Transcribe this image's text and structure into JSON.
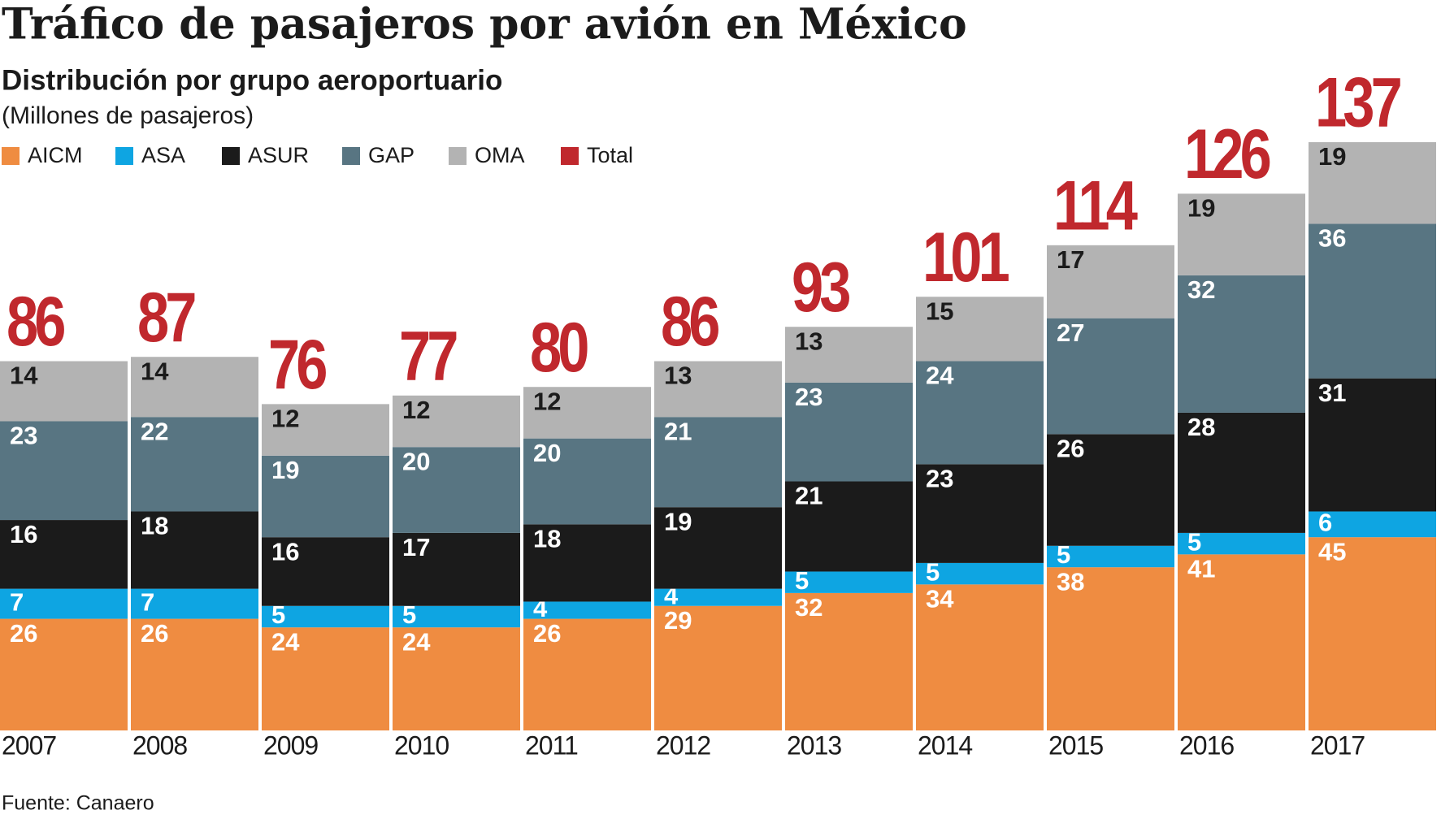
{
  "chart_data": {
    "type": "stacked-bar",
    "title": "Tráfico de pasajeros por avión en México",
    "subtitle": "Distribución por grupo aeroportuario",
    "unit": "(Millones de pasajeros)",
    "source": "Fuente: Canaero",
    "categories": [
      "2007",
      "2008",
      "2009",
      "2010",
      "2011",
      "2012",
      "2013",
      "2014",
      "2015",
      "2016",
      "2017"
    ],
    "series": [
      {
        "name": "AICM",
        "color": "#ef8c41",
        "values": [
          26,
          26,
          24,
          24,
          26,
          29,
          32,
          34,
          38,
          41,
          45
        ]
      },
      {
        "name": "ASA",
        "color": "#0ea5e2",
        "values": [
          7,
          7,
          5,
          5,
          4,
          4,
          5,
          5,
          5,
          5,
          6
        ]
      },
      {
        "name": "ASUR",
        "color": "#1b1b1b",
        "values": [
          16,
          18,
          16,
          17,
          18,
          19,
          21,
          23,
          26,
          28,
          31
        ]
      },
      {
        "name": "GAP",
        "color": "#587582",
        "values": [
          23,
          22,
          19,
          20,
          20,
          21,
          23,
          24,
          27,
          32,
          36
        ]
      },
      {
        "name": "OMA",
        "color": "#b3b3b3",
        "values": [
          14,
          14,
          12,
          12,
          12,
          13,
          13,
          15,
          17,
          19,
          19
        ]
      }
    ],
    "total": {
      "name": "Total",
      "color": "#c0282d",
      "values": [
        86,
        87,
        76,
        77,
        80,
        86,
        93,
        101,
        114,
        126,
        137
      ]
    }
  }
}
